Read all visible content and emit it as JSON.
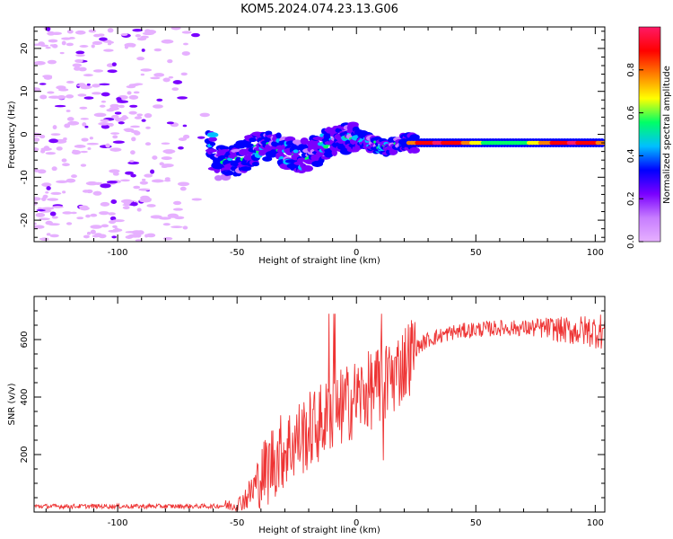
{
  "title": "KOM5.2024.074.23.13.G06",
  "chart_data": [
    {
      "type": "heatmap",
      "xlabel": "Height of straight line (km)",
      "ylabel": "Frequency (Hz)",
      "xlim": [
        -135,
        104
      ],
      "ylim": [
        -25,
        25
      ],
      "xticks": [
        -100,
        -50,
        0,
        50,
        100
      ],
      "yticks": [
        -20,
        -10,
        0,
        10,
        20
      ],
      "colorbar": {
        "label": "Normalized spectral amplitude",
        "range": [
          0,
          1
        ],
        "ticks": [
          0.0,
          0.2,
          0.4,
          0.6,
          0.8
        ],
        "colors": [
          "#e6b0ff",
          "#c77dff",
          "#7a00ff",
          "#0000ff",
          "#00bfff",
          "#00ff66",
          "#ffff00",
          "#ff8000",
          "#ff0000",
          "#ff1a66"
        ]
      },
      "ridge": [
        {
          "x": -60,
          "y": -7
        },
        {
          "x": -50,
          "y": -6
        },
        {
          "x": -45,
          "y": -4
        },
        {
          "x": -40,
          "y": -3
        },
        {
          "x": -35,
          "y": -3
        },
        {
          "x": -30,
          "y": -4
        },
        {
          "x": -25,
          "y": -5
        },
        {
          "x": -20,
          "y": -5
        },
        {
          "x": -15,
          "y": -3
        },
        {
          "x": -10,
          "y": -2
        },
        {
          "x": -5,
          "y": -1
        },
        {
          "x": 0,
          "y": -1
        },
        {
          "x": 5,
          "y": -2
        },
        {
          "x": 10,
          "y": -3
        },
        {
          "x": 15,
          "y": -3
        },
        {
          "x": 20,
          "y": -2
        },
        {
          "x": 25,
          "y": -2
        },
        {
          "x": 40,
          "y": -2
        },
        {
          "x": 60,
          "y": -2
        },
        {
          "x": 80,
          "y": -2
        },
        {
          "x": 104,
          "y": -2
        }
      ]
    },
    {
      "type": "line",
      "xlabel": "Height of straight line (km)",
      "ylabel": "SNR (v/v)",
      "xlim": [
        -135,
        104
      ],
      "ylim": [
        0,
        750
      ],
      "xticks": [
        -100,
        -50,
        0,
        50,
        100
      ],
      "yticks": [
        200,
        400,
        600
      ],
      "color": "#ee3333",
      "envelope": [
        {
          "x": -135,
          "y": 20
        },
        {
          "x": -60,
          "y": 20
        },
        {
          "x": -50,
          "y": 25
        },
        {
          "x": -45,
          "y": 60
        },
        {
          "x": -40,
          "y": 120
        },
        {
          "x": -35,
          "y": 180
        },
        {
          "x": -30,
          "y": 220
        },
        {
          "x": -25,
          "y": 250
        },
        {
          "x": -20,
          "y": 280
        },
        {
          "x": -15,
          "y": 310
        },
        {
          "x": -10,
          "y": 340
        },
        {
          "x": -5,
          "y": 370
        },
        {
          "x": 0,
          "y": 400
        },
        {
          "x": 5,
          "y": 420
        },
        {
          "x": 10,
          "y": 440
        },
        {
          "x": 15,
          "y": 470
        },
        {
          "x": 20,
          "y": 520
        },
        {
          "x": 25,
          "y": 570
        },
        {
          "x": 30,
          "y": 600
        },
        {
          "x": 40,
          "y": 625
        },
        {
          "x": 50,
          "y": 635
        },
        {
          "x": 60,
          "y": 640
        },
        {
          "x": 70,
          "y": 640
        },
        {
          "x": 80,
          "y": 640
        },
        {
          "x": 90,
          "y": 630
        },
        {
          "x": 104,
          "y": 630
        }
      ]
    }
  ]
}
